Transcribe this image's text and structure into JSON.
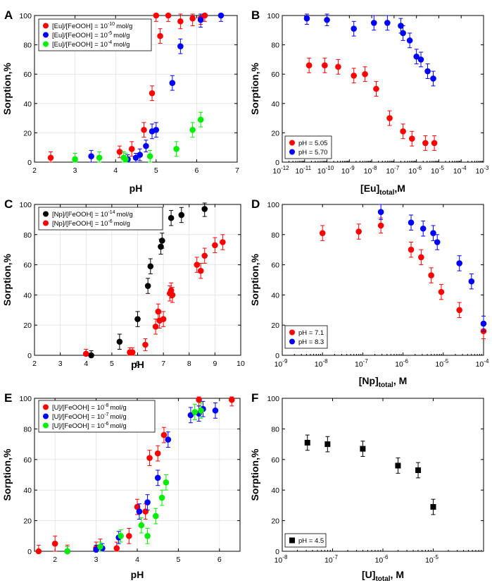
{
  "chart_data": [
    {
      "id": "A",
      "panel_label": "A",
      "type": "scatter",
      "xlabel": "pH",
      "ylabel": "Sorption,%",
      "xscale": "linear",
      "xlim": [
        2,
        7
      ],
      "xticks": [
        2,
        3,
        4,
        5,
        6,
        7
      ],
      "xtick_labels": [
        "2",
        "3",
        "4",
        "5",
        "6",
        "7"
      ],
      "ylim": [
        0,
        100
      ],
      "yticks": [
        0,
        20,
        40,
        60,
        80,
        100
      ],
      "ytick_labels": [
        "0",
        "20",
        "40",
        "60",
        "80",
        "100"
      ],
      "grid": true,
      "legend_position": "top-left",
      "series": [
        {
          "name": "[Eu]/[FeOOH] = 10",
          "name_sup": "-10",
          "name_suffix": "mol/g",
          "color": "#ff0000",
          "points": [
            [
              2.4,
              3,
              4
            ],
            [
              4.1,
              7,
              4
            ],
            [
              4.4,
              9,
              5
            ],
            [
              4.7,
              22,
              5
            ],
            [
              4.9,
              47,
              5
            ],
            [
              5.0,
              100,
              4
            ],
            [
              5.1,
              86,
              5
            ],
            [
              5.3,
              100,
              4
            ],
            [
              5.6,
              96,
              5
            ],
            [
              5.9,
              98,
              5
            ],
            [
              6.1,
              98,
              4
            ],
            [
              6.2,
              100,
              4
            ]
          ]
        },
        {
          "name": "[Eu]/[FeOOH] = 10",
          "name_sup": "-5",
          "name_suffix": "mol/g",
          "color": "#0000ff",
          "points": [
            [
              3.4,
              4,
              4
            ],
            [
              4.3,
              2,
              3
            ],
            [
              4.5,
              3,
              3
            ],
            [
              4.6,
              5,
              4
            ],
            [
              4.75,
              11,
              4
            ],
            [
              4.9,
              21,
              5
            ],
            [
              5.0,
              22,
              5
            ],
            [
              5.4,
              54,
              5
            ],
            [
              5.6,
              79,
              5
            ],
            [
              6.1,
              97,
              5
            ],
            [
              6.6,
              100,
              4
            ]
          ]
        },
        {
          "name": "[Eu]/[FeOOH] = 10",
          "name_sup": "-4",
          "name_suffix": "mol/g",
          "color": "#00ee00",
          "points": [
            [
              3.0,
              2,
              4
            ],
            [
              3.6,
              3,
              4
            ],
            [
              4.2,
              3,
              4
            ],
            [
              4.25,
              2,
              4
            ],
            [
              4.85,
              4,
              4
            ],
            [
              5.5,
              9,
              5
            ],
            [
              5.9,
              22,
              5
            ],
            [
              6.1,
              29,
              5
            ]
          ]
        }
      ]
    },
    {
      "id": "B",
      "panel_label": "B",
      "type": "scatter",
      "xlabel_main": "[Eu]",
      "xlabel_sub": "total",
      "xlabel_tail": ",M",
      "ylabel": "Sorption,%",
      "xscale": "log",
      "xlim": [
        1e-12,
        0.001
      ],
      "xticks": [
        -12,
        -11,
        -10,
        -9,
        -8,
        -7,
        -6,
        -5,
        -4,
        -3
      ],
      "xtick_labels": [
        "10",
        "10",
        "10",
        "10",
        "10",
        "10",
        "10",
        "10",
        "10",
        "10"
      ],
      "xtick_sups": [
        "-12",
        "-11",
        "-10",
        "-9",
        "-8",
        "-7",
        "-6",
        "-5",
        "-4",
        "-3"
      ],
      "ylim": [
        0,
        100
      ],
      "yticks": [
        0,
        20,
        40,
        60,
        80,
        100
      ],
      "ytick_labels": [
        "0",
        "20",
        "40",
        "60",
        "80",
        "100"
      ],
      "grid": false,
      "legend_position": "bottom-left",
      "series": [
        {
          "name": "pH = 5.05",
          "color": "#ff0000",
          "points": [
            [
              -10.8,
              66,
              5
            ],
            [
              -10.1,
              66,
              5
            ],
            [
              -9.5,
              65,
              5
            ],
            [
              -8.8,
              59,
              5
            ],
            [
              -8.3,
              60,
              5
            ],
            [
              -7.8,
              50,
              5
            ],
            [
              -7.2,
              30,
              5
            ],
            [
              -6.6,
              21,
              5
            ],
            [
              -6.2,
              16,
              5
            ],
            [
              -5.6,
              13,
              5
            ],
            [
              -5.2,
              13,
              5
            ]
          ]
        },
        {
          "name": "pH = 5.70",
          "color": "#0000ff",
          "points": [
            [
              -10.9,
              98,
              4
            ],
            [
              -10.0,
              97,
              4
            ],
            [
              -8.8,
              91,
              5
            ],
            [
              -7.9,
              95,
              5
            ],
            [
              -7.3,
              95,
              5
            ],
            [
              -6.7,
              93,
              5
            ],
            [
              -6.6,
              88,
              5
            ],
            [
              -6.3,
              83,
              5
            ],
            [
              -6.0,
              72,
              5
            ],
            [
              -5.8,
              70,
              5
            ],
            [
              -5.5,
              62,
              5
            ],
            [
              -5.25,
              57,
              5
            ]
          ]
        }
      ]
    },
    {
      "id": "C",
      "panel_label": "C",
      "type": "scatter",
      "xlabel": "pH",
      "ylabel": "Sorption,%",
      "xscale": "linear",
      "xlim": [
        2,
        10
      ],
      "xticks": [
        2,
        3,
        4,
        5,
        6,
        7,
        8,
        9,
        10
      ],
      "xtick_labels": [
        "2",
        "3",
        "4",
        "5",
        "6",
        "7",
        "8",
        "9",
        "10"
      ],
      "ylim": [
        0,
        100
      ],
      "yticks": [
        0,
        20,
        40,
        60,
        80,
        100
      ],
      "ytick_labels": [
        "0",
        "20",
        "40",
        "60",
        "80",
        "100"
      ],
      "grid": true,
      "legend_position": "top-left",
      "series": [
        {
          "name": "[Np]/[FeOOH] = 10",
          "name_sup": "-14",
          "name_suffix": "mol/g",
          "color": "#000000",
          "points": [
            [
              4.2,
              0,
              3
            ],
            [
              5.3,
              9,
              5
            ],
            [
              6.0,
              24,
              5
            ],
            [
              6.4,
              46,
              5
            ],
            [
              6.5,
              59,
              5
            ],
            [
              6.9,
              72,
              5
            ],
            [
              6.95,
              76,
              5
            ],
            [
              7.3,
              91,
              5
            ],
            [
              7.7,
              93,
              5
            ],
            [
              8.6,
              97,
              5
            ]
          ]
        },
        {
          "name": "[Np]/[FeOOH] = 10",
          "name_sup": "-6",
          "name_suffix": "mol/g",
          "color": "#ff0000",
          "points": [
            [
              4.0,
              1,
              3
            ],
            [
              5.7,
              2,
              3
            ],
            [
              5.8,
              2,
              3
            ],
            [
              6.3,
              7,
              4
            ],
            [
              6.7,
              19,
              5
            ],
            [
              6.8,
              29,
              5
            ],
            [
              6.85,
              23,
              5
            ],
            [
              7.0,
              24,
              5
            ],
            [
              7.25,
              41,
              5
            ],
            [
              7.3,
              43,
              5
            ],
            [
              7.35,
              40,
              5
            ],
            [
              8.3,
              60,
              5
            ],
            [
              8.45,
              56,
              5
            ],
            [
              8.6,
              66,
              5
            ],
            [
              9.0,
              73,
              5
            ],
            [
              9.3,
              75,
              5
            ]
          ]
        }
      ]
    },
    {
      "id": "D",
      "panel_label": "D",
      "type": "scatter",
      "xlabel_main": "[Np]",
      "xlabel_sub": "total",
      "xlabel_tail": ", M",
      "ylabel": "Sorption,%",
      "xscale": "log",
      "xlim": [
        1e-09,
        0.0001
      ],
      "xticks": [
        -9,
        -8,
        -7,
        -6,
        -5,
        -4
      ],
      "xtick_labels": [
        "10",
        "10",
        "10",
        "10",
        "10",
        "10"
      ],
      "xtick_sups": [
        "-9",
        "-8",
        "-7",
        "-6",
        "-5",
        "-4"
      ],
      "ylim": [
        0,
        100
      ],
      "yticks": [
        0,
        20,
        40,
        60,
        80,
        100
      ],
      "ytick_labels": [
        "0",
        "20",
        "40",
        "60",
        "80",
        "100"
      ],
      "grid": false,
      "legend_position": "bottom-left",
      "series": [
        {
          "name": "pH = 7.1",
          "color": "#ff0000",
          "points": [
            [
              -8.0,
              81,
              5
            ],
            [
              -7.1,
              82,
              5
            ],
            [
              -6.55,
              86,
              5
            ],
            [
              -5.8,
              70,
              5
            ],
            [
              -5.55,
              65,
              5
            ],
            [
              -5.3,
              53,
              5
            ],
            [
              -5.05,
              42,
              5
            ],
            [
              -4.6,
              30,
              5
            ],
            [
              -4.0,
              16,
              5
            ]
          ]
        },
        {
          "name": "pH = 8.3",
          "color": "#0000ff",
          "points": [
            [
              -6.55,
              95,
              5
            ],
            [
              -5.8,
              88,
              5
            ],
            [
              -5.5,
              84,
              5
            ],
            [
              -5.25,
              81,
              5
            ],
            [
              -5.15,
              75,
              5
            ],
            [
              -4.6,
              61,
              5
            ],
            [
              -4.3,
              49,
              5
            ],
            [
              -4.0,
              21,
              5
            ]
          ]
        }
      ]
    },
    {
      "id": "E",
      "panel_label": "E",
      "type": "scatter",
      "xlabel": "pH",
      "ylabel": "Sorption,%",
      "xscale": "linear",
      "xlim": [
        1.5,
        6.5
      ],
      "xticks": [
        2,
        3,
        4,
        5,
        6
      ],
      "xtick_labels": [
        "2",
        "3",
        "4",
        "5",
        "6"
      ],
      "ylim": [
        0,
        100
      ],
      "yticks": [
        0,
        20,
        40,
        60,
        80,
        100
      ],
      "ytick_labels": [
        "0",
        "20",
        "40",
        "60",
        "80",
        "100"
      ],
      "grid": true,
      "legend_position": "top-left",
      "series": [
        {
          "name": "[U]/[FeOOH] = 10",
          "name_sup": "-8",
          "name_suffix": "mol/g",
          "color": "#ff0000",
          "points": [
            [
              1.6,
              0,
              4
            ],
            [
              2.0,
              5,
              5
            ],
            [
              2.3,
              0,
              4
            ],
            [
              3.0,
              2,
              4
            ],
            [
              3.1,
              3,
              5
            ],
            [
              3.5,
              2,
              4
            ],
            [
              3.8,
              10,
              5
            ],
            [
              4.0,
              29,
              5
            ],
            [
              4.2,
              26,
              5
            ],
            [
              4.3,
              61,
              5
            ],
            [
              4.5,
              64,
              5
            ],
            [
              4.65,
              76,
              5
            ],
            [
              5.5,
              99,
              4
            ],
            [
              6.3,
              99,
              4
            ]
          ]
        },
        {
          "name": "[U]/[FeOOH] = 10",
          "name_sup": "-7",
          "name_suffix": "mol/g",
          "color": "#0000ff",
          "points": [
            [
              2.3,
              0,
              3
            ],
            [
              3.0,
              1,
              3
            ],
            [
              3.15,
              2,
              3
            ],
            [
              3.55,
              9,
              4
            ],
            [
              4.05,
              26,
              5
            ],
            [
              4.25,
              32,
              5
            ],
            [
              4.5,
              48,
              5
            ],
            [
              4.75,
              73,
              5
            ],
            [
              5.3,
              89,
              5
            ],
            [
              5.5,
              90,
              5
            ],
            [
              5.6,
              93,
              5
            ],
            [
              5.9,
              92,
              5
            ]
          ]
        },
        {
          "name": "[U]/[FeOOH] = 10",
          "name_sup": "-6",
          "name_suffix": "mol/g",
          "color": "#00ee00",
          "points": [
            [
              2.3,
              0,
              3
            ],
            [
              3.1,
              3,
              3
            ],
            [
              3.6,
              10,
              4
            ],
            [
              4.1,
              17,
              5
            ],
            [
              4.25,
              10,
              5
            ],
            [
              4.45,
              23,
              5
            ],
            [
              4.6,
              35,
              5
            ],
            [
              4.7,
              45,
              5
            ],
            [
              5.4,
              91,
              5
            ],
            [
              5.55,
              92,
              5
            ]
          ]
        }
      ]
    },
    {
      "id": "F",
      "panel_label": "F",
      "type": "scatter",
      "xlabel_main": "[U]",
      "xlabel_sub": "total",
      "xlabel_tail": ", M",
      "ylabel": "Sorption,%",
      "xscale": "log",
      "xlim": [
        1e-08,
        0.0001
      ],
      "xticks": [
        -8,
        -7,
        -6,
        -5
      ],
      "xtick_labels": [
        "10",
        "10",
        "10",
        "10"
      ],
      "xtick_sups": [
        "-8",
        "-7",
        "-6",
        "-5"
      ],
      "ylim": [
        0,
        100
      ],
      "yticks": [
        0,
        20,
        40,
        60,
        80,
        100
      ],
      "ytick_labels": [
        "0",
        "20",
        "40",
        "60",
        "80",
        "100"
      ],
      "grid": false,
      "legend_position": "bottom-left",
      "series": [
        {
          "name": "pH = 4.5",
          "color": "#000000",
          "marker": "square",
          "points": [
            [
              -7.5,
              71,
              5
            ],
            [
              -7.1,
              70,
              5
            ],
            [
              -6.4,
              67,
              5
            ],
            [
              -5.7,
              56,
              5
            ],
            [
              -5.3,
              53,
              5
            ],
            [
              -5.0,
              29,
              5
            ]
          ]
        }
      ]
    }
  ]
}
